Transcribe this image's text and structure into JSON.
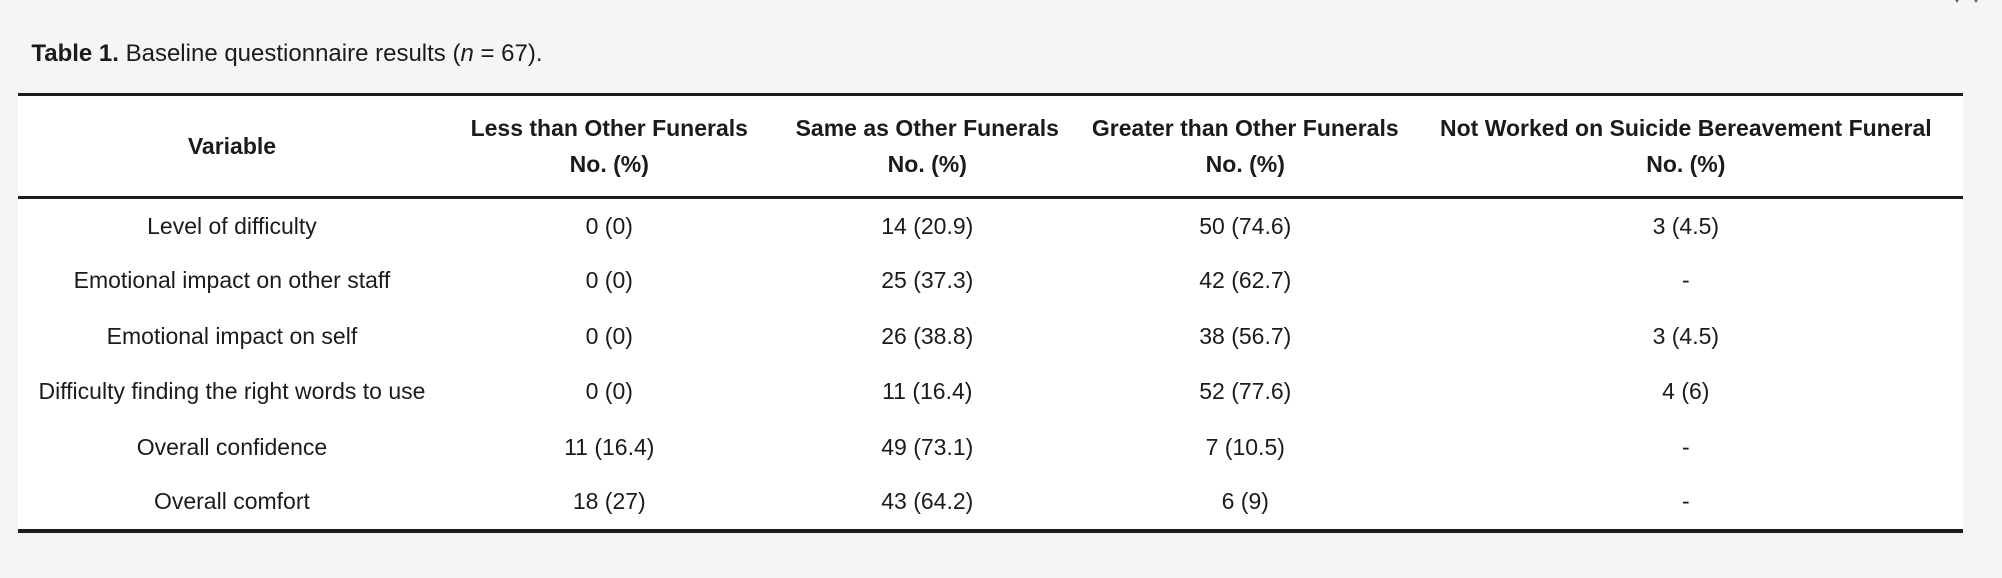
{
  "page": {
    "title": {
      "bold": "Table 1.",
      "pre": " Baseline questionnaire results (",
      "var": "n",
      "post": " = 67)."
    }
  },
  "icons": {
    "expand": "expand-arrows-partially-cropped"
  },
  "colors": {
    "background": "#f5f5f6",
    "panel": "#ffffff",
    "text": "#1b1b1b",
    "rule": "#1c1c1c",
    "icon": "#5f6368"
  },
  "table": {
    "columns": [
      {
        "label": "Variable",
        "sub": ""
      },
      {
        "label": "Less than Other Funerals",
        "sub": "No. (%)"
      },
      {
        "label": "Same as Other Funerals",
        "sub": "No. (%)"
      },
      {
        "label": "Greater than Other Funerals",
        "sub": "No. (%)"
      },
      {
        "label": "Not Worked on Suicide Bereavement Funeral",
        "sub": "No. (%)"
      }
    ],
    "rows": [
      {
        "variable": "Level of difficulty",
        "values": [
          "0 (0)",
          "14 (20.9)",
          "50 (74.6)",
          "3 (4.5)"
        ]
      },
      {
        "variable": "Emotional impact on other staff",
        "values": [
          "0 (0)",
          "25 (37.3)",
          "42 (62.7)",
          "-"
        ]
      },
      {
        "variable": "Emotional impact on self",
        "values": [
          "0 (0)",
          "26 (38.8)",
          "38 (56.7)",
          "3 (4.5)"
        ]
      },
      {
        "variable": "Difficulty finding the right words to use",
        "values": [
          "0 (0)",
          "11 (16.4)",
          "52 (77.6)",
          "4 (6)"
        ]
      },
      {
        "variable": "Overall confidence",
        "values": [
          "11 (16.4)",
          "49 (73.1)",
          "7 (10.5)",
          "-"
        ]
      },
      {
        "variable": "Overall comfort",
        "values": [
          "18 (27)",
          "43 (64.2)",
          "6 (9)",
          "-"
        ]
      }
    ]
  }
}
